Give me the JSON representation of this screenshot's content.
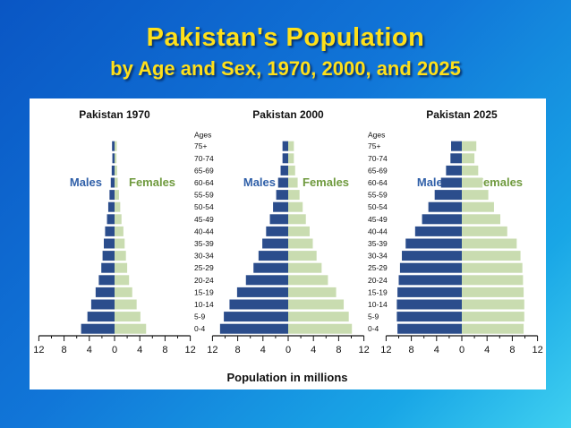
{
  "slide": {
    "title_line1": "Pakistan's Population",
    "title_line2": "by Age and Sex, 1970, 2000, and 2025"
  },
  "chart_data": {
    "type": "bar",
    "orientation": "population-pyramid",
    "xlabel": "Population in millions",
    "age_header": "Ages",
    "age_groups": [
      "0-4",
      "5-9",
      "10-14",
      "15-19",
      "20-24",
      "25-29",
      "30-34",
      "35-39",
      "40-44",
      "45-49",
      "50-54",
      "55-59",
      "60-64",
      "65-69",
      "70-74",
      "75+"
    ],
    "x_ticks": [
      "12",
      "8",
      "4",
      "0",
      "4",
      "8",
      "12"
    ],
    "xlim": [
      -12,
      12
    ],
    "male_label": "Males",
    "female_label": "Females",
    "colors": {
      "male": "#2b4d8c",
      "female": "#c9dcb0",
      "male_text": "#2f5fa8",
      "female_text": "#6f9a3e"
    },
    "pyramids": [
      {
        "title": "Pakistan 1970",
        "series": [
          {
            "name": "Males",
            "values": [
              5.3,
              4.3,
              3.7,
              3.0,
              2.5,
              2.1,
              1.9,
              1.7,
              1.5,
              1.2,
              1.0,
              0.8,
              0.6,
              0.45,
              0.35,
              0.4
            ]
          },
          {
            "name": "Females",
            "values": [
              5.0,
              4.1,
              3.5,
              2.8,
              2.3,
              2.0,
              1.8,
              1.6,
              1.4,
              1.1,
              0.9,
              0.7,
              0.5,
              0.4,
              0.3,
              0.35
            ]
          }
        ]
      },
      {
        "title": "Pakistan 2000",
        "series": [
          {
            "name": "Males",
            "values": [
              10.8,
              10.2,
              9.3,
              8.1,
              6.7,
              5.5,
              4.7,
              4.1,
              3.5,
              2.9,
              2.4,
              1.9,
              1.6,
              1.2,
              0.9,
              0.9
            ]
          },
          {
            "name": "Females",
            "values": [
              10.1,
              9.6,
              8.8,
              7.6,
              6.3,
              5.3,
              4.5,
              3.9,
              3.4,
              2.8,
              2.3,
              1.8,
              1.5,
              1.1,
              0.9,
              0.9
            ]
          }
        ]
      },
      {
        "title": "Pakistan 2025",
        "series": [
          {
            "name": "Males",
            "values": [
              10.2,
              10.3,
              10.3,
              10.2,
              10.0,
              9.8,
              9.5,
              8.9,
              7.4,
              6.3,
              5.3,
              4.3,
              3.3,
              2.5,
              1.8,
              1.7
            ]
          },
          {
            "name": "Females",
            "values": [
              9.8,
              9.9,
              9.9,
              9.8,
              9.7,
              9.6,
              9.3,
              8.7,
              7.2,
              6.1,
              5.1,
              4.2,
              3.3,
              2.6,
              2.0,
              2.3
            ]
          }
        ]
      }
    ]
  }
}
